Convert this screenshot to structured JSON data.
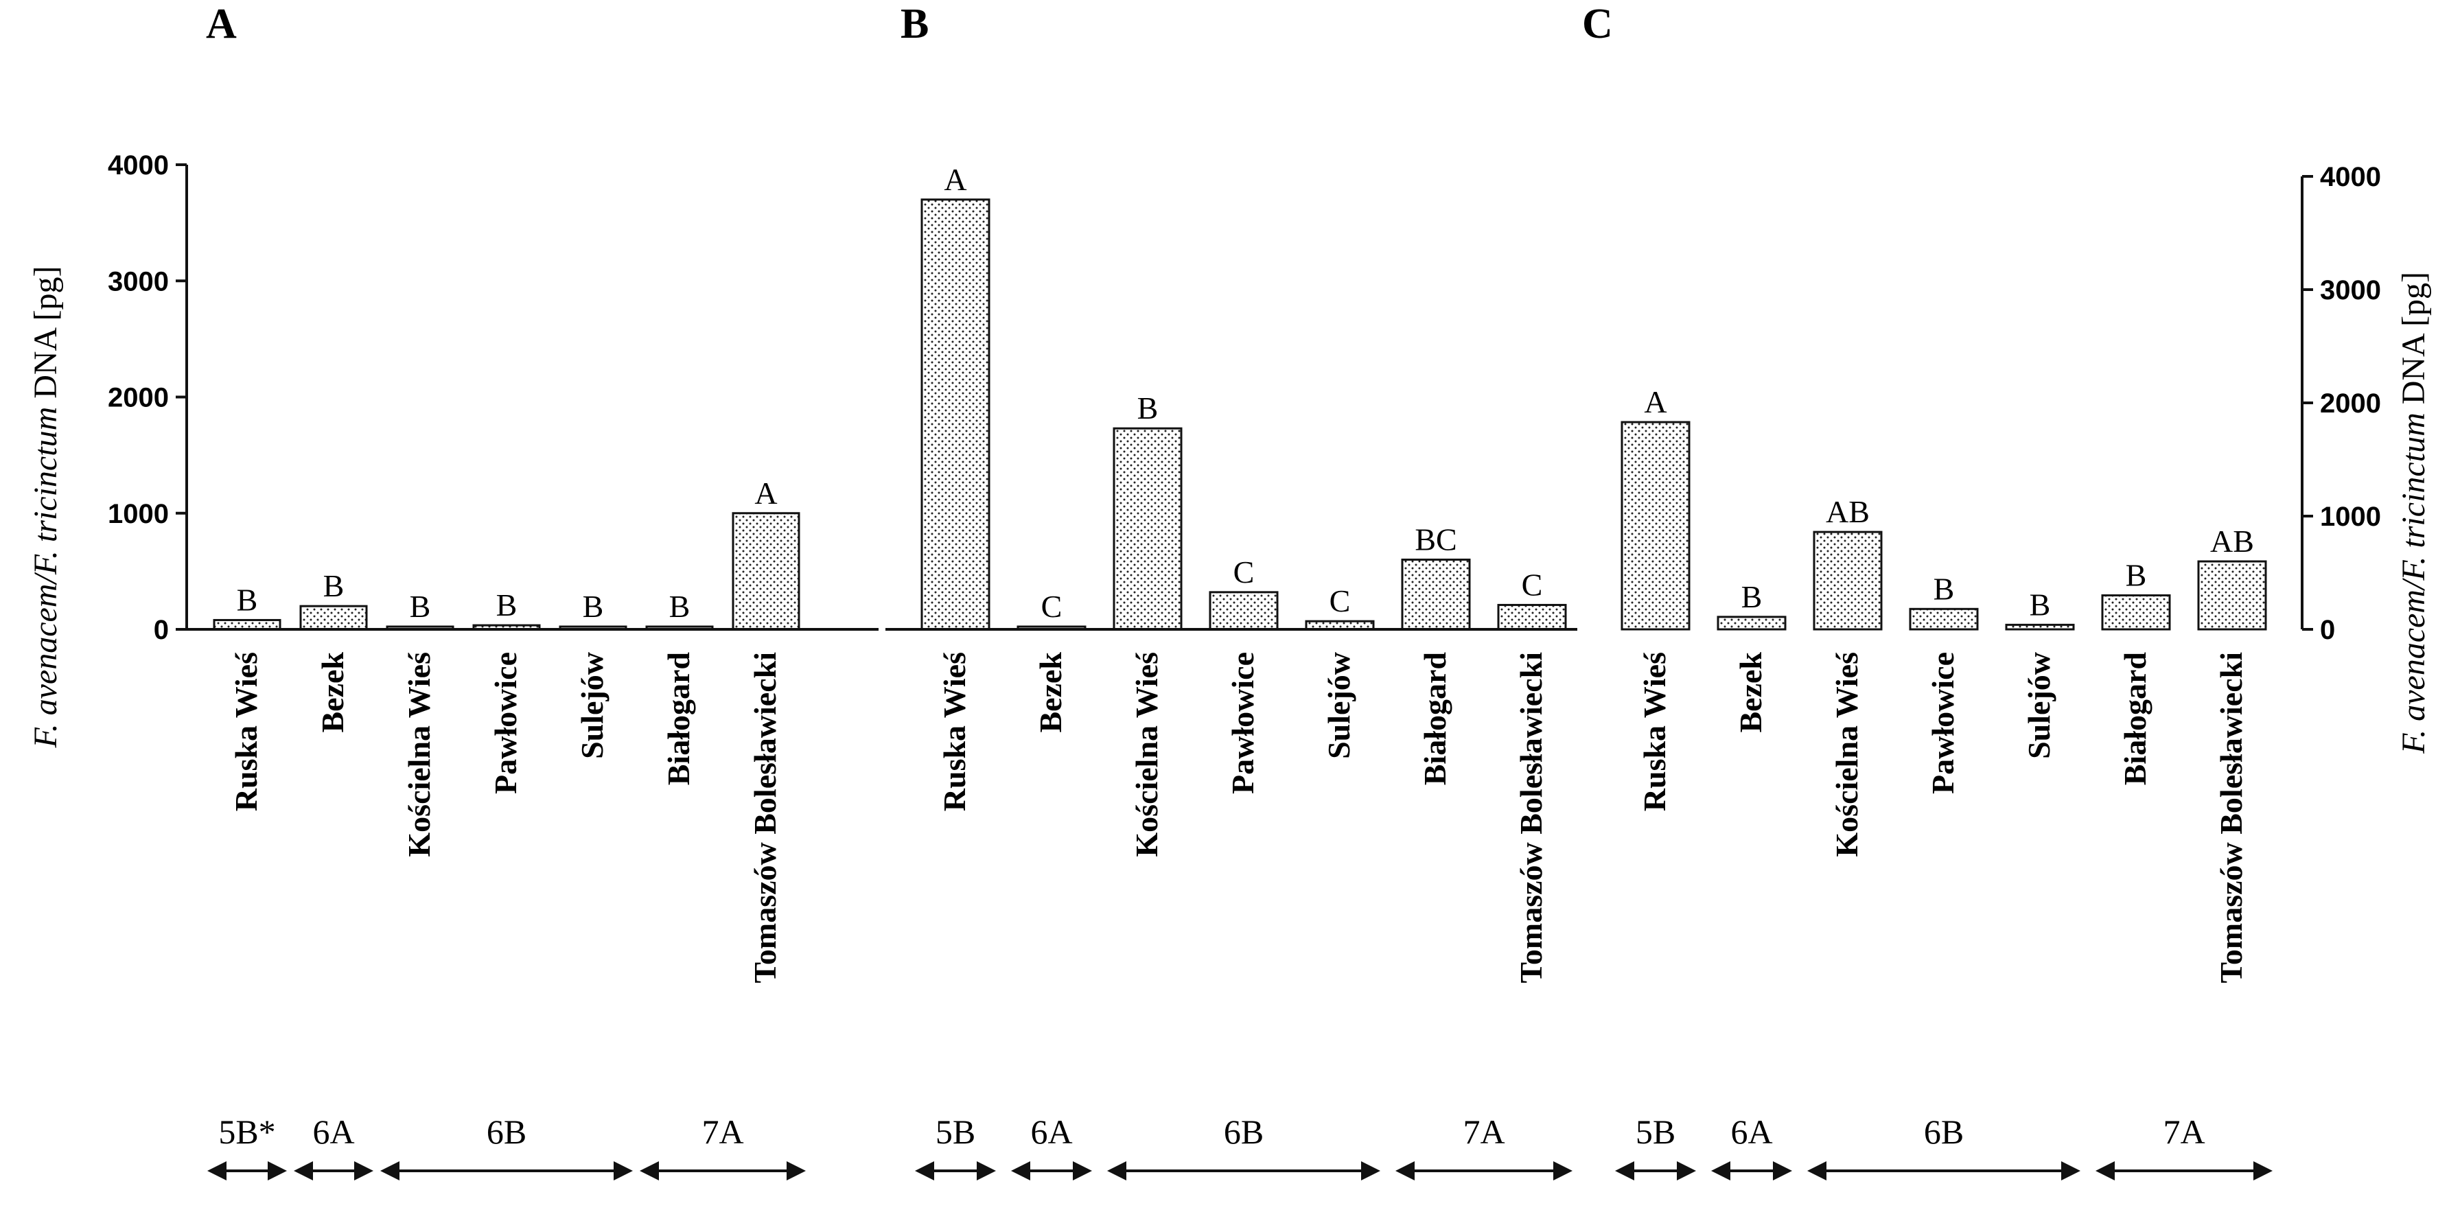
{
  "chart_data": [
    {
      "type": "bar",
      "panel_label": "A",
      "categories": [
        "Ruska Wieś",
        "Bezek",
        "Kościelna Wieś",
        "Pawłowice",
        "Sulejów",
        "Białogard",
        "Tomaszów Bolesławiecki"
      ],
      "values": [
        80,
        200,
        20,
        35,
        5,
        5,
        1000
      ],
      "significance": [
        "B",
        "B",
        "B",
        "B",
        "B",
        "B",
        "A"
      ],
      "ylabel_italic": "F. avenacem/F. tricinctum",
      "ylabel_rest": " DNA [pg]",
      "ylim": [
        0,
        4000
      ],
      "yticks": [
        "0",
        "1000",
        "2000",
        "3000",
        "4000"
      ],
      "groups": [
        {
          "label": "5B*",
          "span": [
            0,
            0
          ]
        },
        {
          "label": "6A",
          "span": [
            1,
            1
          ]
        },
        {
          "label": "6B",
          "span": [
            2,
            4
          ]
        },
        {
          "label": "7A",
          "span": [
            5,
            6
          ]
        }
      ]
    },
    {
      "type": "bar",
      "panel_label": "B",
      "categories": [
        "Ruska Wieś",
        "Bezek",
        "Kościelna Wieś",
        "Pawłowice",
        "Sulejów",
        "Białogard",
        "Tomaszów Bolesławiecki"
      ],
      "values": [
        3700,
        20,
        1730,
        320,
        70,
        600,
        210
      ],
      "significance": [
        "A",
        "C",
        "B",
        "C",
        "C",
        "BC",
        "C"
      ],
      "ylim": [
        0,
        4000
      ],
      "groups": [
        {
          "label": "5B",
          "span": [
            0,
            0
          ]
        },
        {
          "label": "6A",
          "span": [
            1,
            1
          ]
        },
        {
          "label": "6B",
          "span": [
            2,
            4
          ]
        },
        {
          "label": "7A",
          "span": [
            5,
            6
          ]
        }
      ]
    },
    {
      "type": "bar",
      "panel_label": "C",
      "categories": [
        "Ruska Wieś",
        "Bezek",
        "Kościelna Wieś",
        "Pawłowice",
        "Sulejów",
        "Białogard",
        "Tomaszów Bolesławiecki"
      ],
      "values": [
        1830,
        110,
        860,
        180,
        40,
        300,
        600
      ],
      "significance": [
        "A",
        "B",
        "AB",
        "B",
        "B",
        "B",
        "AB"
      ],
      "ylabel_italic": "F. avenacem/F. tricinctum",
      "ylabel_rest": " DNA [pg]",
      "ylim": [
        0,
        4000
      ],
      "yticks": [
        "0",
        "1000",
        "2000",
        "3000",
        "4000"
      ],
      "groups": [
        {
          "label": "5B",
          "span": [
            0,
            0
          ]
        },
        {
          "label": "6A",
          "span": [
            1,
            1
          ]
        },
        {
          "label": "6B",
          "span": [
            2,
            4
          ]
        },
        {
          "label": "7A",
          "span": [
            5,
            6
          ]
        }
      ]
    }
  ]
}
